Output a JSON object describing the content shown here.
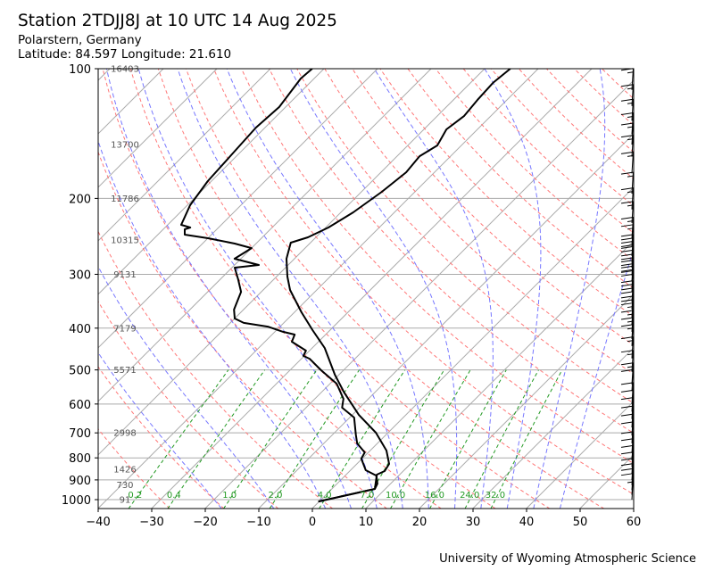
{
  "header": {
    "title": "Station 2TDJJ8J at 10 UTC 14 Aug 2025",
    "location": "Polarstern, Germany",
    "coords": "Latitude: 84.597 Longitude: 21.610"
  },
  "footer": "University of Wyoming Atmospheric Science",
  "chart_data": {
    "type": "line",
    "subtype": "skew-T log-p diagram",
    "xlim": [
      -40,
      60
    ],
    "ylim": [
      1050,
      100
    ],
    "x_ticks": [
      "−40",
      "−30",
      "−20",
      "−10",
      "0",
      "10",
      "20",
      "30",
      "40",
      "50",
      "60"
    ],
    "x_tick_values": [
      -40,
      -30,
      -20,
      -10,
      0,
      10,
      20,
      30,
      40,
      50,
      60
    ],
    "y_ticks": [
      "100",
      "200",
      "300",
      "400",
      "500",
      "600",
      "700",
      "800",
      "900",
      "1000"
    ],
    "y_tick_values": [
      100,
      200,
      300,
      400,
      500,
      600,
      700,
      800,
      900,
      1000
    ],
    "colors": {
      "profile": "#000000",
      "dry_adiabat": "#ff7777",
      "moist_adiabat": "#7777ff",
      "mixing_ratio": "#229922",
      "isotherm": "#aaaaaa"
    },
    "heights": [
      {
        "p": 100,
        "label": "16403"
      },
      {
        "p": 150,
        "label": "13700"
      },
      {
        "p": 200,
        "label": "11786"
      },
      {
        "p": 250,
        "label": "10315"
      },
      {
        "p": 300,
        "label": "9131"
      },
      {
        "p": 400,
        "label": "7179"
      },
      {
        "p": 500,
        "label": "5571"
      },
      {
        "p": 700,
        "label": "2998"
      },
      {
        "p": 850,
        "label": "1426"
      },
      {
        "p": 925,
        "label": "730"
      },
      {
        "p": 1000,
        "label": "91"
      }
    ],
    "mixing_ratios": [
      "0.2",
      "0.4",
      "1.0",
      "2.0",
      "4.0",
      "7.0",
      "10.0",
      "16.0",
      "24.0",
      "32.0"
    ],
    "dry_adiabats_theta_c": [
      -30,
      -20,
      -10,
      0,
      10,
      20,
      30,
      40,
      50,
      60,
      70,
      80,
      90,
      100,
      110,
      120,
      130,
      140,
      150,
      160,
      170,
      180,
      190,
      200
    ],
    "moist_adiabats_t0_c": [
      -20,
      -10,
      0,
      5,
      10,
      15,
      20,
      25,
      30,
      35,
      40,
      45
    ],
    "series": [
      {
        "name": "Temperature",
        "p": [
          1010,
          944.5,
          875,
          858.5,
          826.5,
          769.5,
          699.5,
          636,
          564.5,
          513,
          444.6,
          404.2,
          367.5,
          326.2,
          303.6,
          276,
          253.3,
          246.2,
          233.6,
          215.4,
          193.1,
          173.9,
          159.6,
          150.7,
          138.3,
          128.7,
          118.2,
          107.9,
          100
        ],
        "t": [
          -0.2,
          8.0,
          5.7,
          6.5,
          6.0,
          3.0,
          -2.3,
          -8.8,
          -15.7,
          -20.8,
          -27.7,
          -33.3,
          -38.7,
          -45,
          -48,
          -51.5,
          -53.7,
          -51.5,
          -49.5,
          -47.7,
          -46.2,
          -45.3,
          -45.8,
          -44.5,
          -45.8,
          -45,
          -45.5,
          -45.8,
          -45.2
        ]
      },
      {
        "name": "Dewpoint",
        "p": [
          1010,
          944.5,
          918,
          879.5,
          854.5,
          803,
          777,
          740.7,
          706.3,
          645,
          611.8,
          583.4,
          538,
          501,
          471,
          464,
          451,
          430,
          414,
          408,
          396.7,
          389,
          380,
          362.2,
          329.4,
          308,
          289.5,
          285.4,
          276,
          260.8,
          254.6,
          247.4,
          242.7,
          235.9,
          233.6,
          230.3,
          220.7,
          207.4,
          182.3,
          158,
          137,
          122.7,
          105.4,
          100
        ],
        "t": [
          -0.2,
          8.0,
          7.5,
          5.8,
          2.8,
          -0.2,
          -0.7,
          -3.8,
          -5.7,
          -9.2,
          -13.3,
          -14.7,
          -18.8,
          -24.2,
          -28.5,
          -30.2,
          -30.7,
          -35,
          -35.8,
          -38.5,
          -42.3,
          -47.5,
          -50,
          -51.8,
          -53.8,
          -56.7,
          -59.5,
          -55.5,
          -61.2,
          -60,
          -64,
          -70,
          -75,
          -76,
          -75.3,
          -77.5,
          -78.3,
          -79.5,
          -80.7,
          -81.2,
          -81.7,
          -81.2,
          -82.5,
          -82.2
        ]
      }
    ],
    "wind_barbs": {
      "p": [
        112,
        122,
        132,
        142,
        150,
        160,
        175,
        195,
        212,
        228,
        248,
        258,
        272,
        282,
        290,
        302,
        312,
        322,
        330,
        348,
        362,
        378,
        392,
        408,
        424,
        440,
        470,
        505,
        540,
        560,
        600,
        625,
        650,
        680,
        710,
        740,
        780,
        810,
        840,
        870,
        900,
        925,
        950,
        975,
        1000
      ],
      "speed_kt": [
        15,
        15,
        15,
        15,
        15,
        15,
        15,
        15,
        15,
        15,
        15,
        15,
        20,
        20,
        20,
        20,
        20,
        20,
        20,
        20,
        20,
        20,
        15,
        15,
        15,
        15,
        15,
        15,
        15,
        10,
        10,
        10,
        10,
        10,
        10,
        10,
        10,
        10,
        10,
        10,
        10,
        10,
        10,
        10,
        5
      ]
    }
  }
}
